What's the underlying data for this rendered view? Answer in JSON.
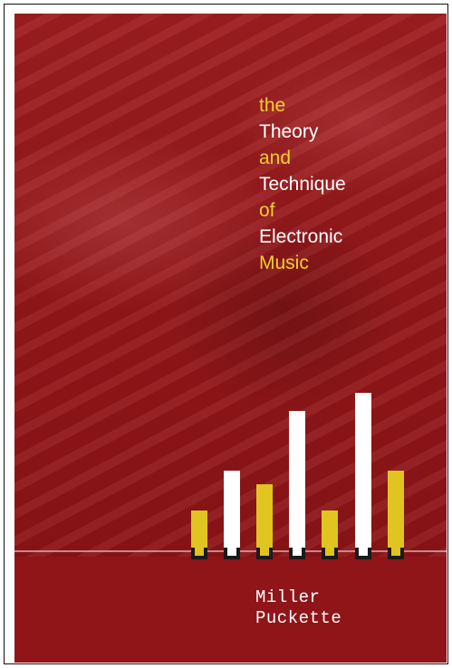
{
  "cover": {
    "title_lines": [
      {
        "text": "the",
        "color": "#f2cf2c"
      },
      {
        "text": "Theory",
        "color": "#ffffff"
      },
      {
        "text": "and",
        "color": "#f2cf2c"
      },
      {
        "text": "Technique",
        "color": "#ffffff"
      },
      {
        "text": "of",
        "color": "#f2cf2c"
      },
      {
        "text": "Electronic",
        "color": "#ffffff"
      },
      {
        "text": "Music",
        "color": "#f2cf2c"
      }
    ],
    "author": {
      "first": "Miller",
      "last": "Puckette"
    },
    "colors": {
      "background": "#8f1518",
      "accent_yellow": "#f2cf2c",
      "text_white": "#ffffff"
    }
  }
}
